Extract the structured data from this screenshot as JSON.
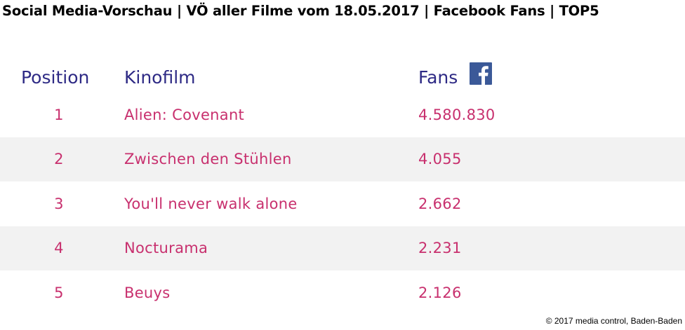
{
  "title": "Social Media-Vorschau | VÖ aller Filme vom 18.05.2017 | Facebook Fans | TOP5",
  "table": {
    "headers": {
      "position": "Position",
      "film": "Kinofilm",
      "fans": "Fans"
    },
    "fans_icon": "facebook-icon",
    "rows": [
      {
        "position": "1",
        "film": "Alien: Covenant",
        "fans": "4.580.830"
      },
      {
        "position": "2",
        "film": "Zwischen den Stühlen",
        "fans": "4.055"
      },
      {
        "position": "3",
        "film": "You'll never walk alone",
        "fans": "2.662"
      },
      {
        "position": "4",
        "film": "Nocturama",
        "fans": "2.231"
      },
      {
        "position": "5",
        "film": "Beuys",
        "fans": "2.126"
      }
    ]
  },
  "footer": {
    "copyright": "© 2017 media control, Baden-Baden"
  },
  "colors": {
    "header_text": "#2e2a85",
    "cell_text": "#c8306e",
    "shaded_row": "#f2f2f2",
    "facebook_blue": "#3b5998"
  }
}
